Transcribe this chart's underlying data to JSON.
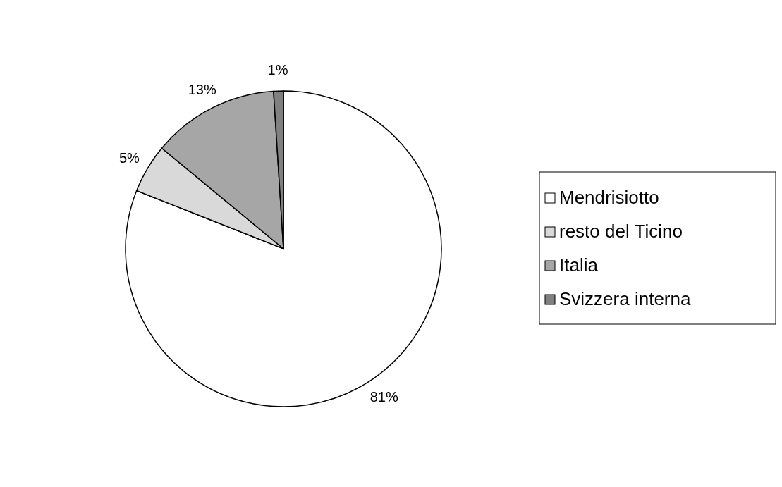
{
  "chart_data": {
    "type": "pie",
    "categories": [
      "Mendrisiotto",
      "resto del Ticino",
      "Italia",
      "Svizzera interna"
    ],
    "values": [
      81,
      5,
      13,
      1
    ],
    "colors": [
      "#ffffff",
      "#d9d9d9",
      "#a6a6a6",
      "#808080"
    ],
    "value_labels": [
      "81%",
      "5%",
      "13%",
      "1%"
    ],
    "legend": "right"
  }
}
